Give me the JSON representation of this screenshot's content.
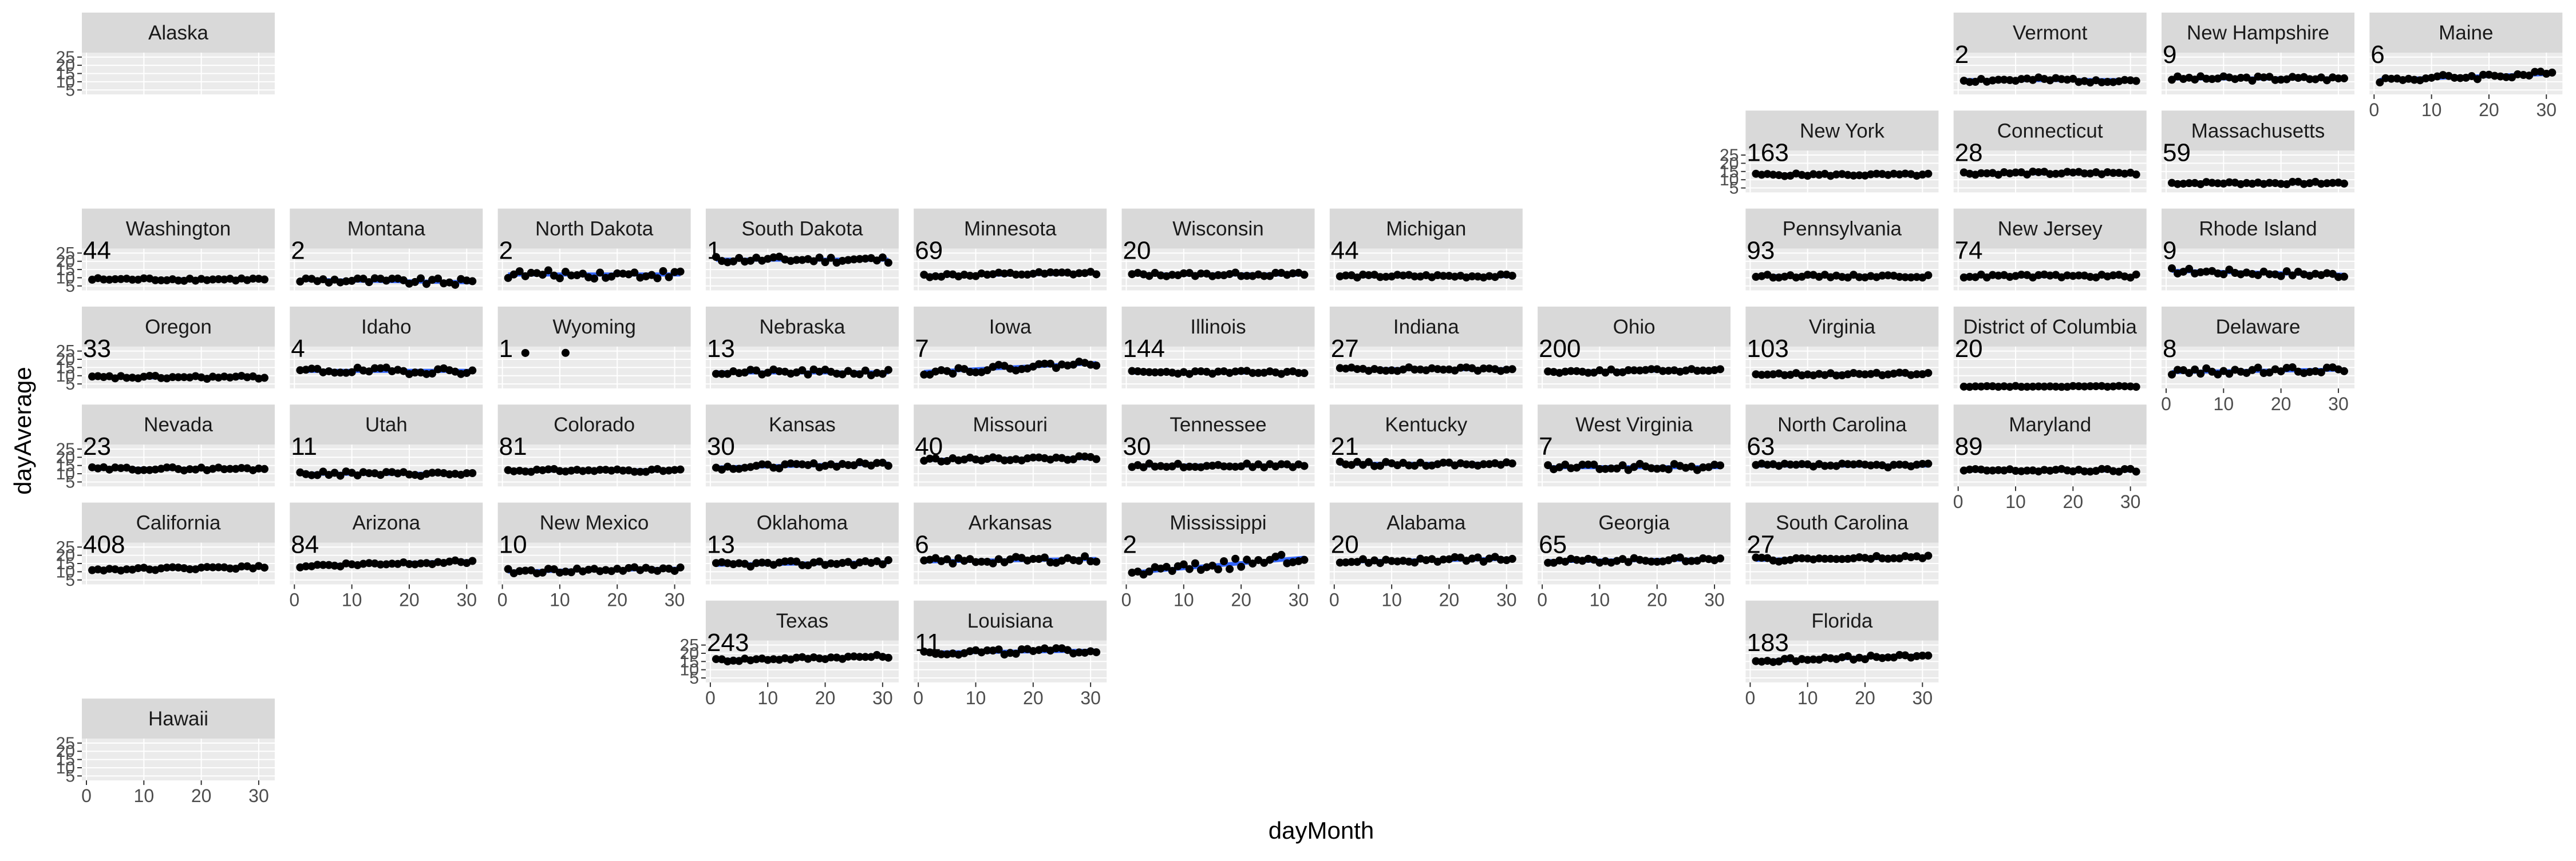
{
  "chart_data": {
    "type": "scatter",
    "layout": "state-grid facets",
    "xlabel": "dayMonth",
    "ylabel": "dayAverage",
    "xlim": [
      0,
      32
    ],
    "ylim": [
      3,
      27
    ],
    "x_ticks": [
      0,
      10,
      20,
      30
    ],
    "y_ticks": [
      5,
      10,
      15,
      20,
      25
    ],
    "grid": true,
    "legend": "none",
    "colors": {
      "points": "#000000",
      "smooth": "#3366ff",
      "panel_bg": "#ebebeb",
      "strip_bg": "#d9d9d9",
      "grid": "#ffffff"
    },
    "panels": [
      {
        "state": "Alaska",
        "count": "",
        "col": 0,
        "row": 0,
        "level": 0,
        "trend": 0,
        "noise": 0,
        "seed": 1
      },
      {
        "state": "Vermont",
        "count": "2",
        "col": 9,
        "row": 0,
        "level": 11,
        "trend": 0,
        "noise": 1.6,
        "seed": 2
      },
      {
        "state": "New Hampshire",
        "count": "9",
        "col": 10,
        "row": 0,
        "level": 12,
        "trend": 0,
        "noise": 1.4,
        "seed": 3
      },
      {
        "state": "Maine",
        "count": "6",
        "col": 11,
        "row": 0,
        "level": 13,
        "trend": 0.12,
        "noise": 1.8,
        "seed": 4
      },
      {
        "state": "New York",
        "count": "163",
        "col": 8,
        "row": 1,
        "level": 13,
        "trend": 0,
        "noise": 0.8,
        "seed": 5
      },
      {
        "state": "Connecticut",
        "count": "28",
        "col": 9,
        "row": 1,
        "level": 14,
        "trend": 0,
        "noise": 1.0,
        "seed": 6
      },
      {
        "state": "Massachusetts",
        "count": "59",
        "col": 10,
        "row": 1,
        "level": 8,
        "trend": 0,
        "noise": 0.8,
        "seed": 7
      },
      {
        "state": "Washington",
        "count": "44",
        "col": 0,
        "row": 2,
        "level": 9,
        "trend": 0,
        "noise": 0.9,
        "seed": 8
      },
      {
        "state": "Montana",
        "count": "2",
        "col": 1,
        "row": 2,
        "level": 8,
        "trend": -0.05,
        "noise": 2.0,
        "seed": 9
      },
      {
        "state": "North Dakota",
        "count": "2",
        "col": 2,
        "row": 2,
        "level": 12,
        "trend": 0,
        "noise": 2.5,
        "seed": 10
      },
      {
        "state": "South Dakota",
        "count": "1",
        "col": 3,
        "row": 2,
        "level": 21,
        "trend": 0,
        "noise": 2.0,
        "seed": 11
      },
      {
        "state": "Minnesota",
        "count": "69",
        "col": 4,
        "row": 2,
        "level": 12,
        "trend": 0.05,
        "noise": 1.2,
        "seed": 12
      },
      {
        "state": "Wisconsin",
        "count": "20",
        "col": 5,
        "row": 2,
        "level": 12,
        "trend": 0,
        "noise": 1.2,
        "seed": 13
      },
      {
        "state": "Michigan",
        "count": "44",
        "col": 6,
        "row": 2,
        "level": 11,
        "trend": 0,
        "noise": 1.0,
        "seed": 14
      },
      {
        "state": "Pennsylvania",
        "count": "93",
        "col": 8,
        "row": 2,
        "level": 11,
        "trend": 0,
        "noise": 0.9,
        "seed": 15
      },
      {
        "state": "New Jersey",
        "count": "74",
        "col": 9,
        "row": 2,
        "level": 11,
        "trend": 0,
        "noise": 1.0,
        "seed": 16
      },
      {
        "state": "Rhode Island",
        "count": "9",
        "col": 10,
        "row": 2,
        "level": 13,
        "trend": -0.08,
        "noise": 1.8,
        "seed": 17
      },
      {
        "state": "Oregon",
        "count": "33",
        "col": 0,
        "row": 3,
        "level": 9,
        "trend": 0,
        "noise": 1.0,
        "seed": 18
      },
      {
        "state": "Idaho",
        "count": "4",
        "col": 1,
        "row": 3,
        "level": 13,
        "trend": 0,
        "noise": 2.0,
        "seed": 19
      },
      {
        "state": "Wyoming",
        "count": "1",
        "col": 2,
        "row": 3,
        "level": 24,
        "trend": 0,
        "noise": 1.0,
        "seed": 20,
        "sparse": true
      },
      {
        "state": "Nebraska",
        "count": "13",
        "col": 3,
        "row": 3,
        "level": 12,
        "trend": 0,
        "noise": 1.8,
        "seed": 21
      },
      {
        "state": "Iowa",
        "count": "7",
        "col": 4,
        "row": 3,
        "level": 15,
        "trend": 0.18,
        "noise": 2.0,
        "seed": 22
      },
      {
        "state": "Illinois",
        "count": "144",
        "col": 5,
        "row": 3,
        "level": 12,
        "trend": 0,
        "noise": 1.0,
        "seed": 23
      },
      {
        "state": "Indiana",
        "count": "27",
        "col": 6,
        "row": 3,
        "level": 14,
        "trend": 0,
        "noise": 1.2,
        "seed": 24
      },
      {
        "state": "Ohio",
        "count": "200",
        "col": 7,
        "row": 3,
        "level": 13,
        "trend": 0.04,
        "noise": 1.0,
        "seed": 25
      },
      {
        "state": "Virginia",
        "count": "103",
        "col": 8,
        "row": 3,
        "level": 11,
        "trend": 0,
        "noise": 0.9,
        "seed": 26
      },
      {
        "state": "District of Columbia",
        "count": "20",
        "col": 9,
        "row": 3,
        "level": 3.5,
        "trend": 0,
        "noise": 0.3,
        "seed": 27
      },
      {
        "state": "Delaware",
        "count": "8",
        "col": 10,
        "row": 3,
        "level": 13,
        "trend": 0.05,
        "noise": 2.0,
        "seed": 28
      },
      {
        "state": "Nevada",
        "count": "23",
        "col": 0,
        "row": 4,
        "level": 13,
        "trend": 0,
        "noise": 1.0,
        "seed": 29
      },
      {
        "state": "Utah",
        "count": "11",
        "col": 1,
        "row": 4,
        "level": 10,
        "trend": 0,
        "noise": 1.4,
        "seed": 30
      },
      {
        "state": "Colorado",
        "count": "81",
        "col": 2,
        "row": 4,
        "level": 12,
        "trend": 0,
        "noise": 0.9,
        "seed": 31
      },
      {
        "state": "Kansas",
        "count": "30",
        "col": 3,
        "row": 4,
        "level": 15,
        "trend": 0.08,
        "noise": 1.4,
        "seed": 32
      },
      {
        "state": "Missouri",
        "count": "40",
        "col": 4,
        "row": 4,
        "level": 19,
        "trend": 0.04,
        "noise": 1.2,
        "seed": 33
      },
      {
        "state": "Tennessee",
        "count": "30",
        "col": 5,
        "row": 4,
        "level": 15,
        "trend": 0,
        "noise": 1.2,
        "seed": 34
      },
      {
        "state": "Kentucky",
        "count": "21",
        "col": 6,
        "row": 4,
        "level": 16,
        "trend": 0,
        "noise": 1.4,
        "seed": 35
      },
      {
        "state": "West Virginia",
        "count": "7",
        "col": 7,
        "row": 4,
        "level": 14,
        "trend": 0,
        "noise": 2.0,
        "seed": 36
      },
      {
        "state": "North Carolina",
        "count": "63",
        "col": 8,
        "row": 4,
        "level": 15,
        "trend": 0,
        "noise": 1.2,
        "seed": 37
      },
      {
        "state": "Maryland",
        "count": "89",
        "col": 9,
        "row": 4,
        "level": 12,
        "trend": 0,
        "noise": 1.0,
        "seed": 38
      },
      {
        "state": "California",
        "count": "408",
        "col": 0,
        "row": 5,
        "level": 12,
        "trend": 0.05,
        "noise": 0.8,
        "seed": 39
      },
      {
        "state": "Arizona",
        "count": "84",
        "col": 1,
        "row": 5,
        "level": 15,
        "trend": 0.1,
        "noise": 1.2,
        "seed": 40
      },
      {
        "state": "New Mexico",
        "count": "10",
        "col": 2,
        "row": 5,
        "level": 11,
        "trend": 0.06,
        "noise": 1.6,
        "seed": 41
      },
      {
        "state": "Oklahoma",
        "count": "13",
        "col": 3,
        "row": 5,
        "level": 15,
        "trend": 0.05,
        "noise": 1.6,
        "seed": 42
      },
      {
        "state": "Arkansas",
        "count": "6",
        "col": 4,
        "row": 5,
        "level": 17,
        "trend": 0.05,
        "noise": 2.0,
        "seed": 43
      },
      {
        "state": "Mississippi",
        "count": "2",
        "col": 5,
        "row": 5,
        "level": 14,
        "trend": 0.3,
        "noise": 3.0,
        "seed": 44
      },
      {
        "state": "Alabama",
        "count": "20",
        "col": 6,
        "row": 5,
        "level": 17,
        "trend": 0.06,
        "noise": 1.6,
        "seed": 45
      },
      {
        "state": "Georgia",
        "count": "65",
        "col": 7,
        "row": 5,
        "level": 17,
        "trend": 0.04,
        "noise": 1.4,
        "seed": 46
      },
      {
        "state": "South Carolina",
        "count": "27",
        "col": 8,
        "row": 5,
        "level": 18,
        "trend": 0.05,
        "noise": 1.4,
        "seed": 47
      },
      {
        "state": "Texas",
        "count": "243",
        "col": 3,
        "row": 6,
        "level": 17,
        "trend": 0.08,
        "noise": 1.0,
        "seed": 48
      },
      {
        "state": "Louisiana",
        "count": "11",
        "col": 4,
        "row": 6,
        "level": 21,
        "trend": 0.04,
        "noise": 1.8,
        "seed": 49
      },
      {
        "state": "Florida",
        "count": "183",
        "col": 8,
        "row": 6,
        "level": 17,
        "trend": 0.12,
        "noise": 1.2,
        "seed": 50
      },
      {
        "state": "Hawaii",
        "count": "",
        "col": 0,
        "row": 7,
        "level": 0,
        "trend": 0,
        "noise": 0,
        "seed": 51
      }
    ]
  }
}
